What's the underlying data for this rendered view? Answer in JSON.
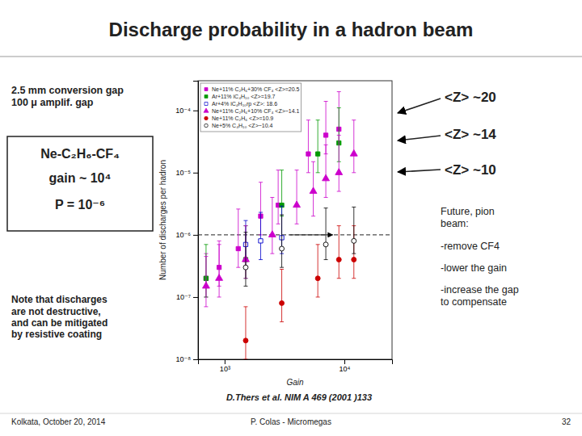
{
  "chart_data": {
    "type": "scatter",
    "title": "Discharge probability in a hadron beam",
    "subtitle": "2.5 mm conversion gap\n100 μ amplif. gap",
    "annotations": [
      "Ne-C₂H₆-CF₄",
      "gain ~ 10⁴",
      "P = 10⁻⁶",
      "Note that discharges\nare not destructive,\nand can be mitigated\nby resistive coating",
      "<Z> ~20",
      "<Z> ~14",
      "<Z> ~10",
      "Future, pion\nbeam:",
      "-remove CF4",
      "-lower the gain",
      "-increase the gap\nto compensate",
      "D.Thers et al. NIM A 469 (2001 )133",
      "Kolkata, October 20, 2014",
      "P. Colas - Micromegas",
      "32"
    ],
    "xlabel": "Gain",
    "ylabel": "Number of discharges per hadron",
    "log": true,
    "xlim": [
      600,
      25000
    ],
    "ylim": [
      1e-08,
      0.0003
    ],
    "xticks": [
      {
        "value": 1000,
        "label": "10³"
      },
      {
        "value": 10000,
        "label": "10⁴"
      }
    ],
    "yticks": [
      {
        "value": 1e-08,
        "label": "10⁻⁸"
      },
      {
        "value": 1e-07,
        "label": "10⁻⁷"
      },
      {
        "value": 1e-06,
        "label": "10⁻⁶"
      },
      {
        "value": 1e-05,
        "label": "10⁻⁵"
      },
      {
        "value": 0.0001,
        "label": "10⁻⁴"
      }
    ],
    "grid": false,
    "legend": "upper left",
    "series": [
      {
        "name": "Ne+11% C₂H₆+30% CF₄ <Z>=20.5",
        "color": "#cc00cc",
        "marker": "square",
        "x": [
          700,
          900,
          1300,
          2000,
          2800,
          5000,
          7000,
          9000
        ],
        "values": [
          2e-07,
          3e-07,
          6e-07,
          2e-06,
          3e-06,
          2e-05,
          4e-05,
          5e-05
        ],
        "yerr_lo": [
          1e-07,
          1.5e-07,
          3e-07,
          1e-06,
          1.5e-06,
          1e-05,
          2e-05,
          2e-05
        ],
        "yerr_hi": [
          3e-07,
          5e-07,
          2e-06,
          5e-06,
          8e-06,
          5e-05,
          0.0001,
          0.00015
        ]
      },
      {
        "name": "Ar+11% iC₄H₁₀ <Z>=19.7",
        "color": "#009900",
        "marker": "square",
        "x": [
          700,
          1500,
          3000,
          6000,
          9000
        ],
        "values": [
          2e-07,
          4e-07,
          3e-06,
          2e-05,
          3e-05
        ],
        "yerr_lo": [
          1e-07,
          2e-07,
          1e-06,
          1e-05,
          1.5e-05
        ],
        "yerr_hi": [
          5e-07,
          1e-06,
          8e-06,
          5e-05,
          8e-05
        ]
      },
      {
        "name": "Ar+4% iC₄H₁₀rp <Z>: 18.6",
        "color": "#0000cc",
        "marker": "square-open",
        "x": [
          1500,
          2000,
          3000
        ],
        "values": [
          7e-07,
          8e-07,
          9e-07
        ],
        "yerr_lo": [
          3e-07,
          4e-07,
          4e-07
        ],
        "yerr_hi": [
          1e-06,
          1.5e-06,
          2e-06
        ]
      },
      {
        "name": "Ne+11% C₂H₆+10% CF₄ <Z>~14.1",
        "color": "#cc00cc",
        "marker": "triangle",
        "x": [
          700,
          900,
          1500,
          2500,
          4000,
          5500,
          7000,
          9000,
          12000
        ],
        "values": [
          1.5e-07,
          2e-07,
          4e-07,
          1e-06,
          3e-06,
          5e-06,
          8e-06,
          1e-05,
          2e-05
        ],
        "yerr_lo": [
          8e-08,
          1e-07,
          2e-07,
          5e-07,
          1.5e-06,
          3e-06,
          4e-06,
          5e-06,
          1e-05
        ],
        "yerr_hi": [
          3e-07,
          5e-07,
          1e-06,
          3e-06,
          8e-06,
          1e-05,
          2e-05,
          3e-05,
          5e-05
        ]
      },
      {
        "name": "Ne+11% C₂H₆ <Z>=10.9",
        "color": "#cc0000",
        "marker": "circle",
        "x": [
          1500,
          3000,
          6000,
          9000,
          12000
        ],
        "values": [
          2e-08,
          8e-08,
          2e-07,
          4e-07,
          4e-07
        ],
        "yerr_lo": [
          1e-08,
          4e-08,
          1e-07,
          2e-07,
          2e-07
        ],
        "yerr_hi": [
          5e-08,
          2e-07,
          5e-07,
          1e-06,
          1e-06
        ]
      },
      {
        "name": "Ne+5% C₄H₁₀ <Z>~10.4",
        "color": "#000000",
        "marker": "circle-open",
        "x": [
          1500,
          3000,
          7000,
          12000
        ],
        "values": [
          3e-07,
          6e-07,
          7e-07,
          8e-07
        ],
        "yerr_lo": [
          1.5e-07,
          3e-07,
          3e-07,
          3e-07
        ],
        "yerr_hi": [
          8e-07,
          1.5e-06,
          2e-06,
          2e-06
        ]
      }
    ],
    "reference_lines": [
      {
        "y": 1e-06,
        "line_style": "dashed",
        "arrow_x": [
          3500,
          8000
        ]
      }
    ]
  }
}
